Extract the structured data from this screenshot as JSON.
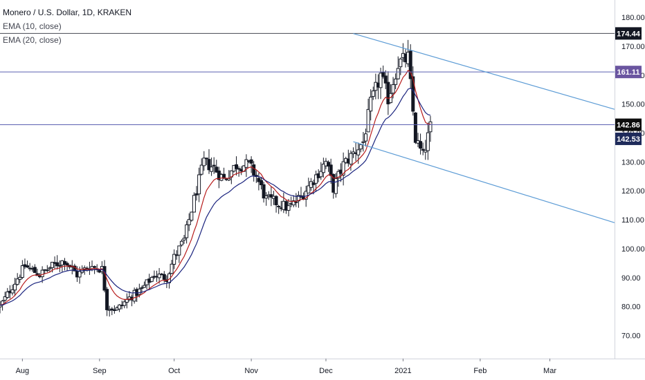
{
  "legend": {
    "symbol": "Monero / U.S. Dollar, 1D, KRAKEN",
    "ema10": "EMA (10, close)",
    "ema20": "EMA (20, close)"
  },
  "colors": {
    "ema10": "#b71c1c",
    "ema20": "#1a237e",
    "channel": "#5b9bd5",
    "hline": "#5a5fb0",
    "top_line": "#434651",
    "badge_174": "#131722",
    "badge_161": "#6a55a0",
    "badge_142_86": "#0d0d0d",
    "badge_142_53": "#1e2a5a",
    "candle": "#131722"
  },
  "chart_data": {
    "type": "candlestick",
    "ylim": [
      62,
      186
    ],
    "y_ticks": [
      70,
      80,
      90,
      100,
      110,
      120,
      130,
      140,
      150,
      160,
      170,
      180
    ],
    "x_labels": [
      {
        "label": "Aug",
        "date": "2020-08-01"
      },
      {
        "label": "Sep",
        "date": "2020-09-01"
      },
      {
        "label": "Oct",
        "date": "2020-10-01"
      },
      {
        "label": "Nov",
        "date": "2020-11-01"
      },
      {
        "label": "Dec",
        "date": "2020-12-01"
      },
      {
        "label": "2021",
        "date": "2021-01-01"
      },
      {
        "label": "Feb",
        "date": "2021-02-01"
      },
      {
        "label": "Mar",
        "date": "2021-03-01"
      }
    ],
    "x_range": [
      "2020-07-23",
      "2021-03-27"
    ],
    "close_keypoints": [
      [
        "2020-07-23",
        80
      ],
      [
        "2020-07-28",
        87
      ],
      [
        "2020-08-02",
        94
      ],
      [
        "2020-08-08",
        91
      ],
      [
        "2020-08-13",
        94
      ],
      [
        "2020-08-18",
        96
      ],
      [
        "2020-08-23",
        91
      ],
      [
        "2020-08-28",
        94
      ],
      [
        "2020-09-02",
        93
      ],
      [
        "2020-09-04",
        80
      ],
      [
        "2020-09-08",
        79
      ],
      [
        "2020-09-13",
        83
      ],
      [
        "2020-09-18",
        86
      ],
      [
        "2020-09-23",
        91
      ],
      [
        "2020-09-28",
        90
      ],
      [
        "2020-10-01",
        97
      ],
      [
        "2020-10-05",
        103
      ],
      [
        "2020-10-09",
        117
      ],
      [
        "2020-10-13",
        130
      ],
      [
        "2020-10-17",
        128
      ],
      [
        "2020-10-21",
        124
      ],
      [
        "2020-10-26",
        129
      ],
      [
        "2020-10-31",
        129
      ],
      [
        "2020-11-03",
        125
      ],
      [
        "2020-11-07",
        117
      ],
      [
        "2020-11-11",
        116
      ],
      [
        "2020-11-16",
        114
      ],
      [
        "2020-11-21",
        118
      ],
      [
        "2020-11-26",
        124
      ],
      [
        "2020-12-01",
        130
      ],
      [
        "2020-12-04",
        121
      ],
      [
        "2020-12-08",
        129
      ],
      [
        "2020-12-12",
        133
      ],
      [
        "2020-12-16",
        137
      ],
      [
        "2020-12-19",
        150
      ],
      [
        "2020-12-23",
        160
      ],
      [
        "2020-12-26",
        152
      ],
      [
        "2020-12-30",
        164
      ],
      [
        "2021-01-03",
        166
      ],
      [
        "2021-01-06",
        138
      ],
      [
        "2021-01-09",
        132
      ],
      [
        "2021-01-12",
        142
      ]
    ],
    "ema10_end": 146.5,
    "ema20_end": 144.5,
    "horizontal_lines": [
      174.44,
      161.11,
      142.86
    ],
    "price_badges": [
      {
        "value": "174.44",
        "level": 174.44,
        "color_key": "badge_174"
      },
      {
        "value": "161.11",
        "level": 161.11,
        "color_key": "badge_161"
      },
      {
        "value": "142.86",
        "level": 142.86,
        "color_key": "badge_142_86"
      },
      {
        "value": "142.53",
        "level": 142.53,
        "color_key": "badge_142_53"
      }
    ],
    "channel_lines": [
      {
        "from": [
          "2020-12-12",
          174.4
        ],
        "to": [
          "2021-03-27",
          148.2
        ]
      },
      {
        "from": [
          "2020-12-12",
          137.0
        ],
        "to": [
          "2021-03-27",
          109.0
        ]
      }
    ]
  }
}
